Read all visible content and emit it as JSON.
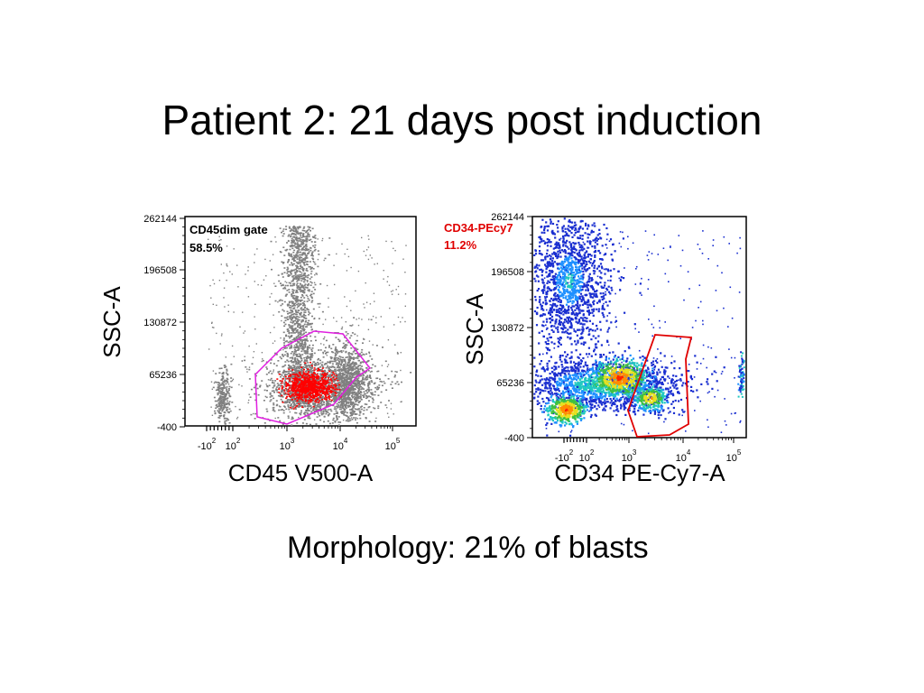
{
  "slide": {
    "title": "Patient 2: 21 days post induction",
    "caption": "Morphology: 21% of blasts"
  },
  "chart_data": [
    {
      "type": "scatter",
      "xlabel": "CD45 V500-A",
      "ylabel": "SSC-A",
      "y_ticks": [
        "262144",
        "196508",
        "130872",
        "65236",
        "-400"
      ],
      "x_ticks": [
        {
          "base": "-10",
          "exp": "2"
        },
        {
          "base": "10",
          "exp": "2"
        },
        {
          "base": "10",
          "exp": "3"
        },
        {
          "base": "10",
          "exp": "4"
        },
        {
          "base": "10",
          "exp": "5"
        }
      ],
      "gate": {
        "name": "CD45dim gate",
        "percent": "58.5%",
        "color": "#e020e0"
      },
      "highlight_color": "#ff0000",
      "population_color": "#808080"
    },
    {
      "type": "scatter",
      "xlabel": "CD34 PE-Cy7-A",
      "ylabel": "SSC-A",
      "y_ticks": [
        "262144",
        "196508",
        "130872",
        "65236",
        "-400"
      ],
      "x_ticks": [
        {
          "base": "-10",
          "exp": "2"
        },
        {
          "base": "10",
          "exp": "2"
        },
        {
          "base": "10",
          "exp": "3"
        },
        {
          "base": "10",
          "exp": "4"
        },
        {
          "base": "10",
          "exp": "5"
        }
      ],
      "gate": {
        "name": "CD34-PEcy7",
        "percent": "11.2%",
        "color": "#e00000"
      },
      "density_colors": [
        "#1a2fd0",
        "#1e90ff",
        "#20c8c0",
        "#40c040",
        "#e8e020",
        "#ff8c00",
        "#ff2000"
      ]
    }
  ]
}
